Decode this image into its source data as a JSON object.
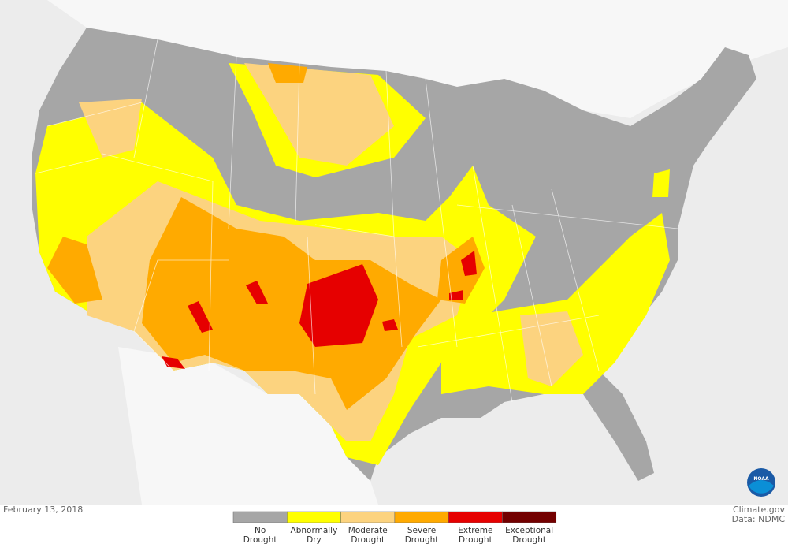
{
  "date": "February 13, 2018",
  "credit": {
    "source": "Climate.gov",
    "data": "Data: NDMC"
  },
  "logo": "NOAA",
  "legend": [
    {
      "lines": [
        "No",
        "Drought"
      ],
      "color": "#a6a6a6"
    },
    {
      "lines": [
        "Abnormally",
        "Dry"
      ],
      "color": "#ffff00"
    },
    {
      "lines": [
        "Moderate",
        "Drought"
      ],
      "color": "#fcd37f"
    },
    {
      "lines": [
        "Severe",
        "Drought"
      ],
      "color": "#ffaa00"
    },
    {
      "lines": [
        "Extreme",
        "Drought"
      ],
      "color": "#e60000"
    },
    {
      "lines": [
        "Exceptional",
        "Drought"
      ],
      "color": "#730000"
    }
  ]
}
